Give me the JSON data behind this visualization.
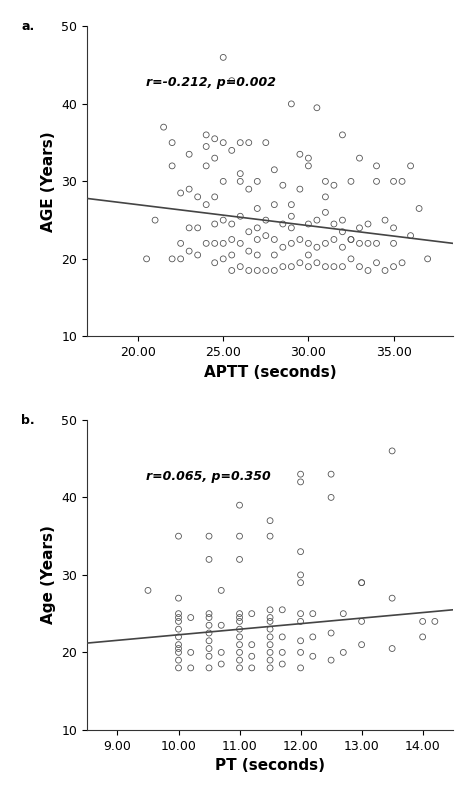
{
  "plot_a": {
    "label": "a.",
    "annotation": "r=-0.212, p=0.002",
    "xlabel": "APTT (seconds)",
    "ylabel": "AGE (Years)",
    "xlim": [
      17.0,
      38.5
    ],
    "ylim": [
      10,
      50
    ],
    "xticks": [
      20.0,
      25.0,
      30.0,
      35.0
    ],
    "yticks": [
      10,
      20,
      30,
      40,
      50
    ],
    "trend_x": [
      17.0,
      38.5
    ],
    "trend_y": [
      27.8,
      22.0
    ],
    "scatter_x": [
      20.5,
      21.0,
      21.5,
      22.0,
      22.0,
      22.5,
      22.5,
      22.5,
      23.0,
      23.0,
      23.0,
      23.5,
      23.5,
      23.5,
      24.0,
      24.0,
      24.0,
      24.0,
      24.5,
      24.5,
      24.5,
      24.5,
      24.5,
      25.0,
      25.0,
      25.0,
      25.0,
      25.0,
      25.5,
      25.5,
      25.5,
      25.5,
      25.5,
      26.0,
      26.0,
      26.0,
      26.0,
      26.0,
      26.5,
      26.5,
      26.5,
      26.5,
      27.0,
      27.0,
      27.0,
      27.0,
      27.0,
      27.5,
      27.5,
      27.5,
      28.0,
      28.0,
      28.0,
      28.0,
      28.5,
      28.5,
      28.5,
      28.5,
      29.0,
      29.0,
      29.0,
      29.0,
      29.0,
      29.5,
      29.5,
      29.5,
      30.0,
      30.0,
      30.0,
      30.0,
      30.0,
      30.5,
      30.5,
      30.5,
      31.0,
      31.0,
      31.0,
      31.0,
      31.5,
      31.5,
      31.5,
      32.0,
      32.0,
      32.0,
      32.0,
      32.5,
      32.5,
      32.5,
      33.0,
      33.0,
      33.0,
      33.5,
      33.5,
      33.5,
      34.0,
      34.0,
      34.0,
      34.5,
      34.5,
      35.0,
      35.0,
      35.0,
      35.5,
      35.5,
      36.0,
      36.5,
      37.0,
      22.0,
      23.0,
      24.0,
      24.5,
      25.0,
      25.5,
      26.0,
      26.5,
      27.0,
      27.5,
      28.0,
      29.0,
      29.5,
      30.0,
      30.5,
      31.0,
      31.5,
      32.0,
      32.5,
      33.0,
      34.0,
      35.0,
      36.0
    ],
    "scatter_y": [
      20.0,
      25.0,
      37.0,
      20.0,
      32.0,
      20.0,
      22.0,
      28.5,
      21.0,
      24.0,
      29.0,
      20.5,
      24.0,
      28.0,
      22.0,
      27.0,
      32.0,
      36.0,
      19.5,
      22.0,
      24.5,
      28.0,
      33.0,
      20.0,
      22.0,
      25.0,
      30.0,
      35.0,
      18.5,
      20.5,
      22.5,
      24.5,
      34.0,
      19.0,
      22.0,
      25.5,
      30.0,
      35.0,
      18.5,
      21.0,
      23.5,
      29.0,
      18.5,
      20.5,
      22.5,
      24.0,
      30.0,
      18.5,
      23.0,
      25.0,
      18.5,
      20.5,
      22.5,
      27.0,
      19.0,
      21.5,
      24.5,
      29.5,
      19.0,
      22.0,
      24.0,
      27.0,
      40.0,
      19.5,
      22.5,
      29.0,
      19.0,
      20.5,
      22.0,
      24.5,
      32.0,
      19.5,
      21.5,
      25.0,
      19.0,
      22.0,
      26.0,
      28.0,
      19.0,
      22.5,
      24.5,
      19.0,
      21.5,
      23.5,
      25.0,
      20.0,
      22.5,
      30.0,
      19.0,
      22.0,
      24.0,
      18.5,
      22.0,
      24.5,
      19.5,
      22.0,
      30.0,
      18.5,
      25.0,
      19.0,
      24.0,
      30.0,
      19.5,
      30.0,
      23.0,
      26.5,
      20.0,
      35.0,
      33.5,
      34.5,
      35.5,
      46.0,
      43.0,
      31.0,
      35.0,
      26.5,
      35.0,
      31.5,
      25.5,
      33.5,
      33.0,
      39.5,
      30.0,
      29.5,
      36.0,
      22.5,
      33.0,
      32.0,
      22.0,
      32.0
    ]
  },
  "plot_b": {
    "label": "b.",
    "annotation": "r=0.065, p=0.350",
    "xlabel": "PT (seconds)",
    "ylabel": "Age (Years)",
    "xlim": [
      8.5,
      14.5
    ],
    "ylim": [
      10,
      50
    ],
    "xticks": [
      9.0,
      10.0,
      11.0,
      12.0,
      13.0,
      14.0
    ],
    "yticks": [
      10,
      20,
      30,
      40,
      50
    ],
    "trend_x": [
      8.5,
      14.5
    ],
    "trend_y": [
      21.2,
      25.5
    ],
    "scatter_x": [
      10.0,
      10.0,
      10.0,
      10.0,
      10.0,
      10.0,
      10.0,
      10.0,
      10.0,
      10.0,
      10.0,
      10.2,
      10.2,
      10.2,
      10.5,
      10.5,
      10.5,
      10.5,
      10.5,
      10.5,
      10.5,
      10.5,
      10.5,
      10.7,
      10.7,
      10.7,
      10.7,
      11.0,
      11.0,
      11.0,
      11.0,
      11.0,
      11.0,
      11.0,
      11.0,
      11.0,
      11.0,
      11.0,
      11.2,
      11.2,
      11.2,
      11.2,
      11.5,
      11.5,
      11.5,
      11.5,
      11.5,
      11.5,
      11.5,
      11.5,
      11.5,
      11.5,
      11.7,
      11.7,
      11.7,
      11.7,
      12.0,
      12.0,
      12.0,
      12.0,
      12.0,
      12.0,
      12.0,
      12.0,
      12.0,
      12.2,
      12.2,
      12.2,
      12.5,
      12.5,
      12.5,
      12.7,
      12.7,
      13.0,
      13.0,
      13.0,
      13.5,
      13.5,
      14.0,
      14.0,
      9.5,
      10.0,
      10.5,
      11.0,
      11.5,
      12.0,
      12.5,
      13.0,
      13.5,
      14.2
    ],
    "scatter_y": [
      18.0,
      19.0,
      20.0,
      20.5,
      21.0,
      22.0,
      23.0,
      24.0,
      24.5,
      25.0,
      27.0,
      18.0,
      20.0,
      24.5,
      18.0,
      19.5,
      20.5,
      21.5,
      22.5,
      23.5,
      24.5,
      25.0,
      32.0,
      18.5,
      20.0,
      23.5,
      28.0,
      18.0,
      19.0,
      20.0,
      21.0,
      22.0,
      23.0,
      24.0,
      24.5,
      25.0,
      32.0,
      35.0,
      18.0,
      19.5,
      21.0,
      25.0,
      18.0,
      19.0,
      20.0,
      21.0,
      22.0,
      23.0,
      24.0,
      24.5,
      25.5,
      35.0,
      18.5,
      20.0,
      22.0,
      25.5,
      18.0,
      20.0,
      21.5,
      24.0,
      25.0,
      29.0,
      33.0,
      42.0,
      30.0,
      19.5,
      22.0,
      25.0,
      19.0,
      22.5,
      40.0,
      20.0,
      25.0,
      21.0,
      24.0,
      29.0,
      20.5,
      27.0,
      22.0,
      24.0,
      28.0,
      35.0,
      35.0,
      39.0,
      37.0,
      43.0,
      43.0,
      29.0,
      46.0,
      24.0
    ]
  },
  "bg_color": "#ffffff",
  "scatter_color": "none",
  "scatter_edgecolor": "#555555",
  "scatter_size": 18,
  "trend_color": "#444444",
  "trend_linewidth": 1.2,
  "annotation_fontsize": 9,
  "label_fontsize": 9,
  "axis_label_fontsize": 11,
  "tick_fontsize": 9
}
